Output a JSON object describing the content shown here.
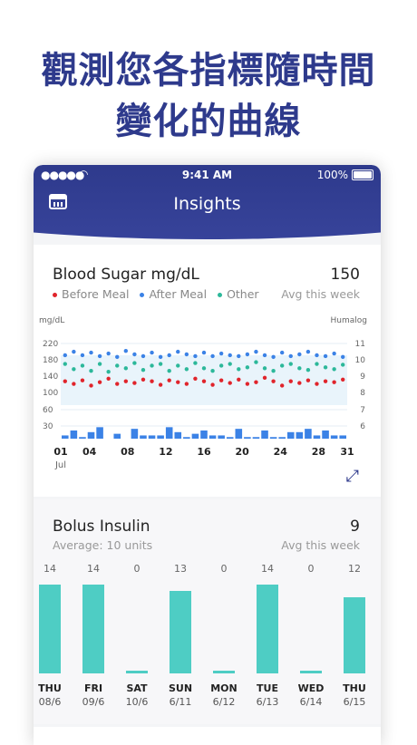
{
  "headline": {
    "line1": "觀測您各指標隨時間",
    "line2": "變化的曲線"
  },
  "status_bar": {
    "time": "9:41 AM",
    "battery": "100%"
  },
  "header": {
    "title": "Insights",
    "calendar_icon": "calendar-icon"
  },
  "blood_sugar": {
    "title": "Blood Sugar mg/dL",
    "value": "150",
    "value_caption": "Avg this week",
    "legend": [
      {
        "label": "Before Meal",
        "color": "#e0242b"
      },
      {
        "label": "After Meal",
        "color": "#3b82e6"
      },
      {
        "label": "Other",
        "color": "#2cb89a"
      }
    ],
    "expand_icon": "expand-icon"
  },
  "bolus": {
    "title": "Bolus Insulin",
    "value": "9",
    "value_caption": "Avg this week",
    "average": "Average: 10 units"
  },
  "chart_data": [
    {
      "type": "bar",
      "title": "Blood Sugar mg/dL",
      "left_axis_label": "mg/dL",
      "right_axis_label": "Humalog",
      "left_ticks": [
        220,
        180,
        140,
        100,
        60,
        30
      ],
      "right_ticks": [
        11,
        10,
        9,
        8,
        7,
        6
      ],
      "x_ticks": [
        "01",
        "04",
        "08",
        "12",
        "16",
        "20",
        "24",
        "28",
        "31"
      ],
      "x_sub": "Jul",
      "ylim": [
        0,
        220
      ],
      "bars": [
        6.8,
        7.1,
        6.7,
        7.0,
        7.3,
        6.4,
        6.9,
        6.6,
        7.2,
        6.8,
        6.8,
        6.8,
        7.3,
        7.0,
        6.7,
        6.9,
        7.1,
        6.8,
        6.8,
        6.7,
        7.2,
        6.7,
        6.7,
        7.1,
        6.7,
        6.7,
        7.0,
        7.0,
        7.2,
        6.8,
        7.1,
        6.8,
        6.8
      ],
      "after_meal": [
        170,
        178,
        170,
        176,
        168,
        174,
        166,
        180,
        172,
        168,
        176,
        166,
        170,
        178,
        172,
        168,
        176,
        168,
        174,
        170,
        168,
        172,
        178,
        170,
        166,
        176,
        168,
        172,
        178,
        170,
        168,
        174,
        166
      ],
      "other": [
        150,
        138,
        146,
        134,
        150,
        132,
        146,
        140,
        152,
        136,
        146,
        150,
        134,
        146,
        138,
        152,
        140,
        134,
        146,
        150,
        138,
        142,
        154,
        140,
        134,
        146,
        150,
        140,
        136,
        150,
        142,
        138,
        148
      ],
      "before_meal": [
        110,
        104,
        112,
        100,
        108,
        116,
        104,
        110,
        106,
        114,
        110,
        102,
        112,
        108,
        104,
        116,
        110,
        102,
        112,
        106,
        114,
        104,
        108,
        118,
        110,
        100,
        110,
        106,
        112,
        104,
        110,
        108,
        114
      ]
    },
    {
      "type": "bar",
      "title": "Bolus Insulin",
      "categories": [
        {
          "day": "THU",
          "date": "08/6",
          "value": 14
        },
        {
          "day": "FRI",
          "date": "09/6",
          "value": 14
        },
        {
          "day": "SAT",
          "date": "10/6",
          "value": 0
        },
        {
          "day": "SUN",
          "date": "6/11",
          "value": 13
        },
        {
          "day": "MON",
          "date": "6/12",
          "value": 0
        },
        {
          "day": "TUE",
          "date": "6/13",
          "value": 14
        },
        {
          "day": "WED",
          "date": "6/14",
          "value": 0
        },
        {
          "day": "THU",
          "date": "6/15",
          "value": 12
        }
      ],
      "ymax": 16,
      "color": "#4ecdc4"
    }
  ]
}
